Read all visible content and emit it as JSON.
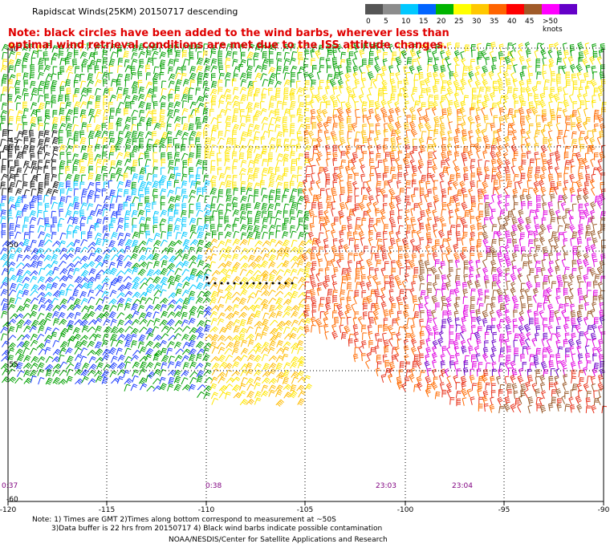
{
  "title": "Rapidscat Winds(25KM) 20150717 descending",
  "notice": {
    "line1": "Note: black circles have been added to the wind barbs, wherever less than",
    "line2": "optimal wind retrieval conditions are met due to the ISS attitude changes."
  },
  "legend": {
    "labels": [
      "0",
      "5",
      "10",
      "15",
      "20",
      "25",
      "30",
      "35",
      "40",
      "45",
      ">50 knots"
    ],
    "colors": [
      "#555555",
      "#8c8c8c",
      "#00c8ff",
      "#0064ff",
      "#00b400",
      "#ffff00",
      "#ffc800",
      "#ff6400",
      "#ff0000",
      "#a05a28",
      "#ff00ff",
      "#6400c8"
    ]
  },
  "axes": {
    "lon_ticks": [
      "-120",
      "-115",
      "-110",
      "-105",
      "-100",
      "-95",
      "-90"
    ],
    "lat_ticks": [
      "-45",
      "-50",
      "-55",
      "-60"
    ],
    "corner_label": "-40"
  },
  "time_labels": [
    "0:37",
    "0:38",
    "23:03",
    "23:04"
  ],
  "footer": {
    "line1": "Note: 1) Times are GMT 2)Times along bottom correspond to measurement at ~50S",
    "line2": "3)Data buffer is 22 hrs from 20150717 4) Black wind barbs indicate possible contamination",
    "credit": "NOAA/NESDIS/Center for Satellite Applications and Research"
  },
  "colors": {
    "notice_text": "#e00000",
    "time_label": "#800080",
    "grid": "#000000"
  }
}
